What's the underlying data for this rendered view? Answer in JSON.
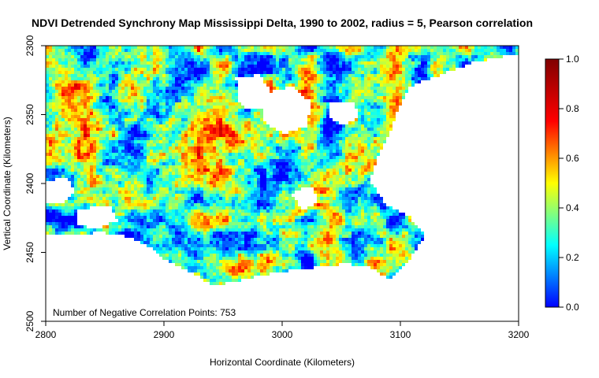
{
  "chart_data": {
    "type": "heatmap",
    "title": "NDVI Detrended Synchrony Map Mississippi Delta, 1990 to 2002, radius = 5, Pearson correlation",
    "xlabel": "Horizontal Coordinate (Kilometers)",
    "ylabel": "Vertical Coordinate (Kilometers)",
    "xlim": [
      2800,
      3200
    ],
    "ylim": [
      2500,
      2300
    ],
    "y_axis_inverted": true,
    "x_ticks": [
      2800,
      2900,
      3000,
      3100,
      3200
    ],
    "y_ticks": [
      2300,
      2350,
      2400,
      2450,
      2500
    ],
    "annotation": "Number of Negative Correlation Points: 753",
    "colorbar": {
      "range": [
        0.0,
        1.0
      ],
      "ticks": [
        "0.0",
        "0.2",
        "0.4",
        "0.6",
        "0.8",
        "1.0"
      ],
      "colormap": "jet"
    }
  }
}
